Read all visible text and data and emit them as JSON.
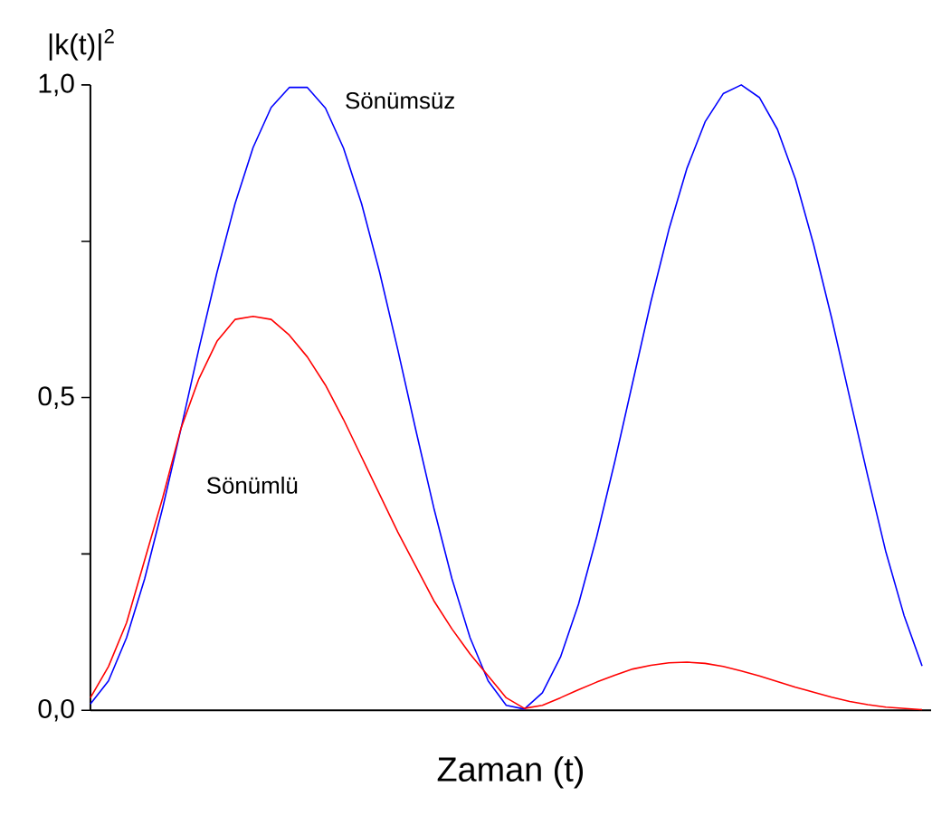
{
  "chart_data": {
    "type": "line",
    "xlabel": "Zaman (t)",
    "ylabel": "|k(t)|$^{2}$",
    "categories": [
      null,
      null,
      null,
      null,
      null,
      null,
      null,
      null,
      null,
      null,
      null,
      null,
      null,
      null,
      null,
      null,
      null,
      null,
      null,
      null,
      null,
      null,
      null,
      null,
      null,
      null,
      null,
      null,
      null,
      null,
      null,
      null,
      null,
      null,
      null,
      null,
      null,
      null,
      null,
      null,
      null,
      null,
      null,
      null,
      null,
      null,
      null
    ],
    "ylim": [
      0,
      1
    ],
    "yticks": [
      {
        "value": 0,
        "label": "0,0"
      },
      {
        "value": 0.25,
        "label": null
      },
      {
        "value": 0.5,
        "label": "0,5"
      },
      {
        "value": 0.75,
        "label": null
      },
      {
        "value": 1,
        "label": "1,0"
      }
    ],
    "grid": false,
    "marker": "none",
    "line_style": "solid",
    "tick_labels": "y",
    "series": [
      {
        "name": "Sönümsüz",
        "color": "#0000ff",
        "values": [
          0.01,
          0.047,
          0.116,
          0.21,
          0.324,
          0.449,
          0.578,
          0.7,
          0.81,
          0.9,
          0.964,
          0.996,
          0.996,
          0.963,
          0.899,
          0.81,
          0.7,
          0.577,
          0.448,
          0.323,
          0.21,
          0.116,
          0.047,
          0.008,
          0.002,
          0.028,
          0.085,
          0.17,
          0.277,
          0.397,
          0.525,
          0.653,
          0.769,
          0.867,
          0.941,
          0.986,
          1.0,
          0.98,
          0.929,
          0.849,
          0.745,
          0.627,
          0.5,
          0.374,
          0.253,
          0.152,
          0.071
        ]
      },
      {
        "name": "Sönümlü",
        "color": "#ff0000",
        "values": [
          0.02,
          0.07,
          0.14,
          0.24,
          0.34,
          0.45,
          0.53,
          0.59,
          0.625,
          0.63,
          0.625,
          0.6,
          0.565,
          0.52,
          0.465,
          0.405,
          0.345,
          0.285,
          0.23,
          0.175,
          0.13,
          0.09,
          0.055,
          0.02,
          0.003,
          0.008,
          0.02,
          0.033,
          0.045,
          0.056,
          0.066,
          0.072,
          0.076,
          0.077,
          0.075,
          0.07,
          0.063,
          0.055,
          0.046,
          0.037,
          0.029,
          0.021,
          0.014,
          0.009,
          0.005,
          0.003,
          0.001
        ]
      }
    ]
  }
}
